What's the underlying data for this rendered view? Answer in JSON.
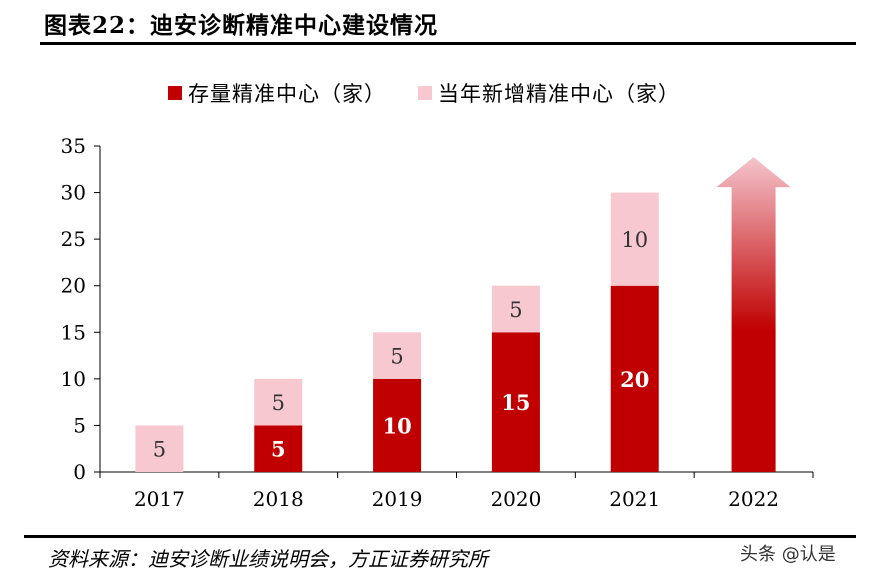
{
  "title": "图表22：迪安诊断精准中心建设情况",
  "source": "资料来源：迪安诊断业绩说明会，方正证券研究所",
  "watermark": "头条 @认是",
  "colors": {
    "existing": "#c00000",
    "new": "#f8c8d0",
    "arrow_top": "#f4c4cc",
    "arrow_bottom": "#c00000"
  },
  "chart_data": {
    "type": "bar",
    "stacked": true,
    "categories": [
      "2017",
      "2018",
      "2019",
      "2020",
      "2021",
      "2022"
    ],
    "series": [
      {
        "name": "存量精准中心（家）",
        "values": [
          0,
          5,
          10,
          15,
          20,
          null
        ],
        "labels": [
          "",
          "5",
          "10",
          "15",
          "20",
          ""
        ]
      },
      {
        "name": "当年新增精准中心（家）",
        "values": [
          5,
          5,
          5,
          5,
          10,
          null
        ],
        "labels": [
          "5",
          "5",
          "5",
          "5",
          "10",
          ""
        ]
      }
    ],
    "y_ticks": [
      "0",
      "5",
      "10",
      "15",
      "20",
      "25",
      "30",
      "35"
    ],
    "ylim": [
      0,
      35
    ],
    "legend": "top",
    "grid": false,
    "annotations": [
      {
        "type": "growth-arrow",
        "category": "2022",
        "from": 0,
        "to": 33.8
      }
    ]
  }
}
